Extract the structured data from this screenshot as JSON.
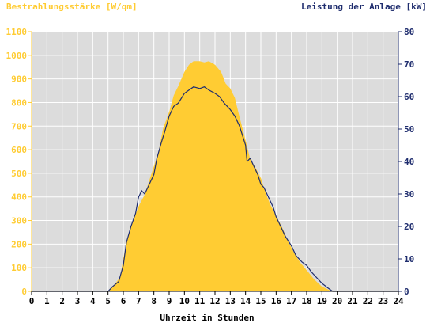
{
  "chart_data": {
    "type": "area",
    "left_axis_title": "Bestrahlungsstärke [W/qm]",
    "right_axis_title": "Leistung der Anlage [kW]",
    "xlabel": "Uhrzeit in Stunden",
    "xlim": [
      0,
      24
    ],
    "ylim_left": [
      0,
      1100
    ],
    "ylim_right": [
      0,
      80
    ],
    "x_ticks": [
      "0",
      "1",
      "2",
      "3",
      "4",
      "5",
      "6",
      "7",
      "8",
      "9",
      "10",
      "11",
      "12",
      "13",
      "14",
      "15",
      "16",
      "17",
      "18",
      "19",
      "20",
      "21",
      "22",
      "23",
      "24"
    ],
    "y_ticks_left": [
      "0",
      "100",
      "200",
      "300",
      "400",
      "500",
      "600",
      "700",
      "800",
      "900",
      "1000",
      "1100"
    ],
    "y_ticks_right": [
      "0",
      "10",
      "20",
      "30",
      "40",
      "50",
      "60",
      "70",
      "80"
    ],
    "grid": true,
    "colors": {
      "irradiance": "#ffcc33",
      "power": "#1f2d6e",
      "plot_bg": "#dcdcdc",
      "left_axis_text": "#ffcc33",
      "right_axis_text": "#1f2d6e"
    },
    "series": [
      {
        "axis": "left",
        "style": "area",
        "points": [
          [
            0,
            0
          ],
          [
            5,
            0
          ],
          [
            5.3,
            20
          ],
          [
            5.8,
            60
          ],
          [
            6,
            140
          ],
          [
            6.3,
            230
          ],
          [
            6.6,
            290
          ],
          [
            7,
            360
          ],
          [
            7.4,
            410
          ],
          [
            7.8,
            490
          ],
          [
            8,
            530
          ],
          [
            8.3,
            590
          ],
          [
            8.6,
            690
          ],
          [
            9,
            760
          ],
          [
            9.3,
            830
          ],
          [
            9.6,
            870
          ],
          [
            10,
            930
          ],
          [
            10.3,
            960
          ],
          [
            10.6,
            975
          ],
          [
            11,
            975
          ],
          [
            11.3,
            970
          ],
          [
            11.6,
            975
          ],
          [
            12,
            960
          ],
          [
            12.4,
            930
          ],
          [
            12.7,
            880
          ],
          [
            13,
            860
          ],
          [
            13.3,
            820
          ],
          [
            13.6,
            740
          ],
          [
            14,
            640
          ],
          [
            14.3,
            560
          ],
          [
            14.6,
            530
          ],
          [
            15,
            480
          ],
          [
            15.3,
            420
          ],
          [
            15.6,
            370
          ],
          [
            16,
            320
          ],
          [
            16.4,
            270
          ],
          [
            16.8,
            210
          ],
          [
            17.2,
            160
          ],
          [
            17.6,
            120
          ],
          [
            18,
            90
          ],
          [
            18.5,
            50
          ],
          [
            19,
            20
          ],
          [
            19.5,
            5
          ],
          [
            19.8,
            0
          ],
          [
            24,
            0
          ]
        ]
      },
      {
        "axis": "right",
        "style": "line",
        "points": [
          [
            0,
            0
          ],
          [
            5,
            0
          ],
          [
            5.3,
            1.5
          ],
          [
            5.7,
            3
          ],
          [
            6,
            8
          ],
          [
            6.2,
            15
          ],
          [
            6.5,
            20
          ],
          [
            6.8,
            24
          ],
          [
            7,
            29
          ],
          [
            7.2,
            31
          ],
          [
            7.4,
            30
          ],
          [
            7.7,
            33
          ],
          [
            8,
            36
          ],
          [
            8.2,
            41
          ],
          [
            8.5,
            46
          ],
          [
            8.7,
            49
          ],
          [
            9,
            54
          ],
          [
            9.3,
            57
          ],
          [
            9.6,
            58
          ],
          [
            10,
            61
          ],
          [
            10.3,
            62
          ],
          [
            10.6,
            63
          ],
          [
            11,
            62.5
          ],
          [
            11.3,
            63
          ],
          [
            11.6,
            62
          ],
          [
            12,
            61
          ],
          [
            12.3,
            60
          ],
          [
            12.6,
            58
          ],
          [
            13,
            56
          ],
          [
            13.3,
            54
          ],
          [
            13.6,
            51
          ],
          [
            13.8,
            48
          ],
          [
            14,
            45
          ],
          [
            14.1,
            40
          ],
          [
            14.3,
            41
          ],
          [
            14.5,
            39
          ],
          [
            14.8,
            36
          ],
          [
            15,
            33
          ],
          [
            15.2,
            32
          ],
          [
            15.5,
            29
          ],
          [
            15.8,
            26
          ],
          [
            16,
            23
          ],
          [
            16.3,
            20
          ],
          [
            16.6,
            17
          ],
          [
            17,
            14
          ],
          [
            17.3,
            11
          ],
          [
            17.7,
            9
          ],
          [
            18,
            8
          ],
          [
            18.3,
            6
          ],
          [
            18.7,
            4
          ],
          [
            19,
            2.5
          ],
          [
            19.4,
            1
          ],
          [
            19.7,
            0
          ],
          [
            24,
            0
          ]
        ]
      }
    ]
  }
}
